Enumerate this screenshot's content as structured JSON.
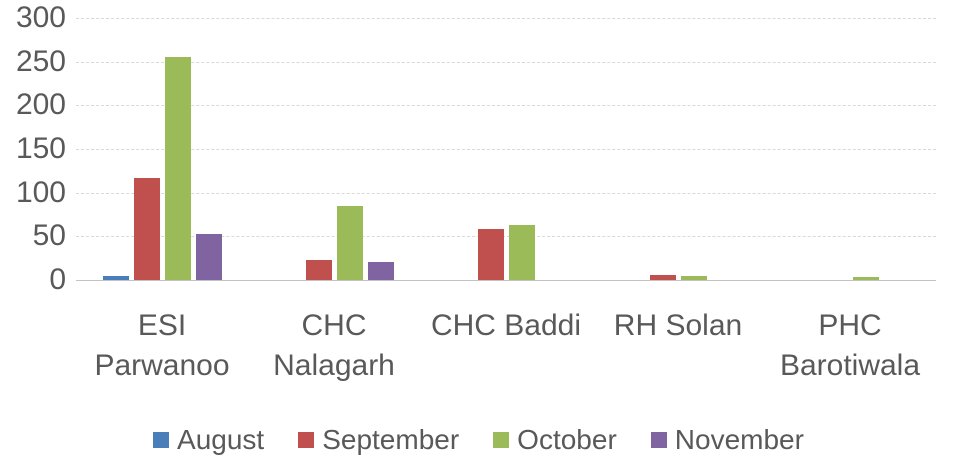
{
  "chart_data": {
    "type": "bar",
    "title": "",
    "xlabel": "",
    "ylabel": "",
    "categories": [
      "ESI Parwanoo",
      "CHC Nalagarh",
      "CHC Baddi",
      "RH Solan",
      "PHC Barotiwala"
    ],
    "series": [
      {
        "name": "August",
        "color": "#4A7EBB",
        "values": [
          5,
          0,
          0,
          0,
          0
        ]
      },
      {
        "name": "September",
        "color": "#C0504D",
        "values": [
          117,
          23,
          58,
          6,
          0
        ]
      },
      {
        "name": "October",
        "color": "#9BBB59",
        "values": [
          255,
          85,
          63,
          5,
          3
        ]
      },
      {
        "name": "November",
        "color": "#8064A2",
        "values": [
          53,
          21,
          0,
          0,
          0
        ]
      }
    ],
    "ylim": [
      0,
      300
    ],
    "yticks": [
      0,
      50,
      100,
      150,
      200,
      250,
      300
    ],
    "grid": "horizontal-dashed",
    "legend_position": "bottom",
    "text_color": "#595959"
  }
}
